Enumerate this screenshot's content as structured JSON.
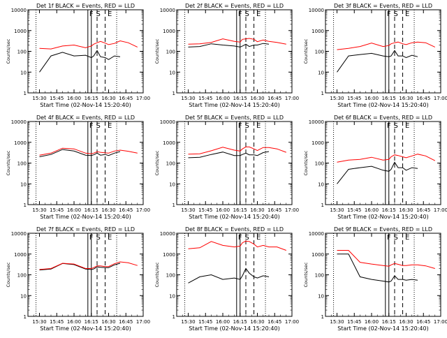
{
  "figure": {
    "xtick_labels": [
      "15:30",
      "15:45",
      "16:00",
      "16:15",
      "16:30",
      "16:45",
      "17:00"
    ],
    "ytick_labels": [
      "1",
      "10",
      "100",
      "1000",
      "10000"
    ],
    "ylabel": "Counts/sec",
    "xlabel": "Start Time (02-Nov-14 15:20:40)",
    "markers": [
      "F",
      "S",
      "E"
    ],
    "colors": {
      "events": "#000000",
      "lld": "#ff0000",
      "axes": "#000000"
    }
  },
  "chart_data": [
    {
      "type": "line",
      "title": "Det 1f BLACK = Events, RED = LLD",
      "ylim": [
        1,
        10000
      ],
      "yscale": "log",
      "grid": false,
      "legend": "none",
      "x": [
        "15:27",
        "15:30",
        "15:40",
        "15:50",
        "16:00",
        "16:10",
        "16:15",
        "16:17",
        "16:20",
        "16:23",
        "16:27",
        "16:30",
        "16:35",
        "16:40",
        "16:47",
        "16:55"
      ],
      "series": [
        {
          "name": "BLACK = Events",
          "values": [
            null,
            10,
            60,
            90,
            60,
            65,
            50,
            60,
            110,
            55,
            50,
            40,
            60,
            55,
            null,
            null
          ]
        },
        {
          "name": "RED = LLD",
          "values": [
            null,
            140,
            130,
            180,
            200,
            150,
            180,
            220,
            260,
            300,
            250,
            210,
            240,
            320,
            260,
            160
          ]
        }
      ]
    },
    {
      "type": "line",
      "title": "Det 2f BLACK = Events, RED = LLD",
      "ylim": [
        1,
        10000
      ],
      "yscale": "log",
      "grid": false,
      "legend": "none",
      "x": [
        "15:27",
        "15:30",
        "15:40",
        "15:50",
        "16:00",
        "16:10",
        "16:15",
        "16:17",
        "16:20",
        "16:23",
        "16:27",
        "16:30",
        "16:35",
        "16:40",
        "16:47",
        "16:55"
      ],
      "series": [
        {
          "name": "BLACK = Events",
          "values": [
            null,
            160,
            170,
            230,
            200,
            180,
            160,
            180,
            220,
            170,
            200,
            200,
            240,
            220,
            null,
            null
          ]
        },
        {
          "name": "RED = LLD",
          "values": [
            null,
            220,
            230,
            270,
            400,
            300,
            280,
            380,
            400,
            420,
            380,
            290,
            350,
            300,
            270,
            220
          ]
        }
      ]
    },
    {
      "type": "line",
      "title": "Det 3f BLACK = Events, RED = LLD",
      "ylim": [
        1,
        10000
      ],
      "yscale": "log",
      "grid": false,
      "legend": "none",
      "x": [
        "15:27",
        "15:30",
        "15:40",
        "15:50",
        "16:00",
        "16:10",
        "16:15",
        "16:17",
        "16:20",
        "16:23",
        "16:27",
        "16:30",
        "16:35",
        "16:40",
        "16:47",
        "16:55"
      ],
      "series": [
        {
          "name": "BLACK = Events",
          "values": [
            null,
            10,
            60,
            70,
            80,
            60,
            55,
            60,
            110,
            60,
            60,
            50,
            65,
            55,
            null,
            null
          ]
        },
        {
          "name": "RED = LLD",
          "values": [
            null,
            120,
            140,
            170,
            250,
            170,
            190,
            230,
            260,
            280,
            230,
            210,
            260,
            280,
            260,
            160
          ]
        }
      ]
    },
    {
      "type": "line",
      "title": "Det 4f BLACK = Events, RED = LLD",
      "ylim": [
        1,
        10000
      ],
      "yscale": "log",
      "grid": false,
      "legend": "none",
      "x": [
        "15:27",
        "15:30",
        "15:40",
        "15:50",
        "16:00",
        "16:10",
        "16:15",
        "16:17",
        "16:20",
        "16:23",
        "16:27",
        "16:30",
        "16:35",
        "16:40",
        "16:47",
        "16:55"
      ],
      "series": [
        {
          "name": "BLACK = Events",
          "values": [
            null,
            200,
            260,
            450,
            380,
            240,
            230,
            250,
            300,
            240,
            260,
            230,
            300,
            360,
            null,
            null
          ]
        },
        {
          "name": "RED = LLD",
          "values": [
            null,
            240,
            300,
            520,
            480,
            300,
            280,
            300,
            350,
            330,
            310,
            300,
            380,
            420,
            370,
            300
          ]
        }
      ]
    },
    {
      "type": "line",
      "title": "Det 5f BLACK = Events, RED = LLD",
      "ylim": [
        1,
        10000
      ],
      "yscale": "log",
      "grid": false,
      "legend": "none",
      "x": [
        "15:27",
        "15:30",
        "15:40",
        "15:50",
        "16:00",
        "16:10",
        "16:15",
        "16:17",
        "16:20",
        "16:23",
        "16:27",
        "16:30",
        "16:35",
        "16:40",
        "16:47",
        "16:55"
      ],
      "series": [
        {
          "name": "BLACK = Events",
          "values": [
            null,
            180,
            190,
            260,
            340,
            230,
            230,
            260,
            300,
            250,
            250,
            230,
            320,
            360,
            null,
            null
          ]
        },
        {
          "name": "RED = LLD",
          "values": [
            null,
            270,
            280,
            390,
            580,
            420,
            380,
            480,
            600,
            600,
            480,
            400,
            560,
            560,
            480,
            330
          ]
        }
      ]
    },
    {
      "type": "line",
      "title": "Det 6f BLACK = Events, RED = LLD",
      "ylim": [
        1,
        10000
      ],
      "yscale": "log",
      "grid": false,
      "legend": "none",
      "x": [
        "15:27",
        "15:30",
        "15:40",
        "15:50",
        "16:00",
        "16:10",
        "16:15",
        "16:17",
        "16:20",
        "16:23",
        "16:27",
        "16:30",
        "16:35",
        "16:40",
        "16:47",
        "16:55"
      ],
      "series": [
        {
          "name": "BLACK = Events",
          "values": [
            null,
            10,
            50,
            60,
            70,
            45,
            40,
            50,
            110,
            60,
            60,
            45,
            60,
            55,
            null,
            null
          ]
        },
        {
          "name": "RED = LLD",
          "values": [
            null,
            110,
            140,
            150,
            190,
            140,
            150,
            200,
            250,
            230,
            200,
            180,
            220,
            270,
            220,
            130
          ]
        }
      ]
    },
    {
      "type": "line",
      "title": "Det 7f BLACK = Events, RED = LLD",
      "ylim": [
        1,
        10000
      ],
      "yscale": "log",
      "grid": false,
      "legend": "none",
      "x": [
        "15:27",
        "15:30",
        "15:40",
        "15:50",
        "16:00",
        "16:10",
        "16:15",
        "16:17",
        "16:20",
        "16:23",
        "16:27",
        "16:30",
        "16:35",
        "16:40",
        "16:47",
        "16:55"
      ],
      "series": [
        {
          "name": "BLACK = Events",
          "values": [
            null,
            170,
            190,
            350,
            310,
            190,
            180,
            190,
            240,
            230,
            220,
            220,
            300,
            360,
            null,
            null
          ]
        },
        {
          "name": "RED = LLD",
          "values": [
            null,
            180,
            200,
            360,
            330,
            200,
            200,
            220,
            270,
            270,
            250,
            250,
            340,
            420,
            380,
            280
          ]
        }
      ]
    },
    {
      "type": "line",
      "title": "Det 8f BLACK = Events, RED = LLD",
      "ylim": [
        1,
        10000
      ],
      "yscale": "log",
      "grid": false,
      "legend": "none",
      "x": [
        "15:27",
        "15:30",
        "15:40",
        "15:50",
        "16:00",
        "16:10",
        "16:15",
        "16:17",
        "16:20",
        "16:23",
        "16:27",
        "16:30",
        "16:35",
        "16:40",
        "16:47",
        "16:55"
      ],
      "series": [
        {
          "name": "BLACK = Events",
          "values": [
            null,
            40,
            80,
            100,
            60,
            70,
            60,
            90,
            200,
            120,
            80,
            70,
            90,
            80,
            null,
            null
          ]
        },
        {
          "name": "RED = LLD",
          "values": [
            null,
            1800,
            2000,
            4000,
            2600,
            2200,
            2400,
            3500,
            4200,
            4000,
            3000,
            2200,
            2600,
            2200,
            2200,
            1500
          ]
        }
      ]
    },
    {
      "type": "line",
      "title": "Det 9f BLACK = Events, RED = LLD",
      "ylim": [
        1,
        10000
      ],
      "yscale": "log",
      "grid": false,
      "legend": "none",
      "x": [
        "15:27",
        "15:30",
        "15:40",
        "15:50",
        "16:00",
        "16:10",
        "16:15",
        "16:17",
        "16:20",
        "16:23",
        "16:27",
        "16:30",
        "16:35",
        "16:40",
        "16:47",
        "16:55"
      ],
      "series": [
        {
          "name": "BLACK = Events",
          "values": [
            null,
            1000,
            1000,
            80,
            60,
            50,
            45,
            50,
            90,
            60,
            60,
            55,
            60,
            55,
            null,
            null
          ]
        },
        {
          "name": "RED = LLD",
          "values": [
            null,
            1500,
            1500,
            400,
            330,
            280,
            260,
            300,
            350,
            320,
            280,
            280,
            300,
            300,
            270,
            200
          ]
        }
      ]
    }
  ]
}
